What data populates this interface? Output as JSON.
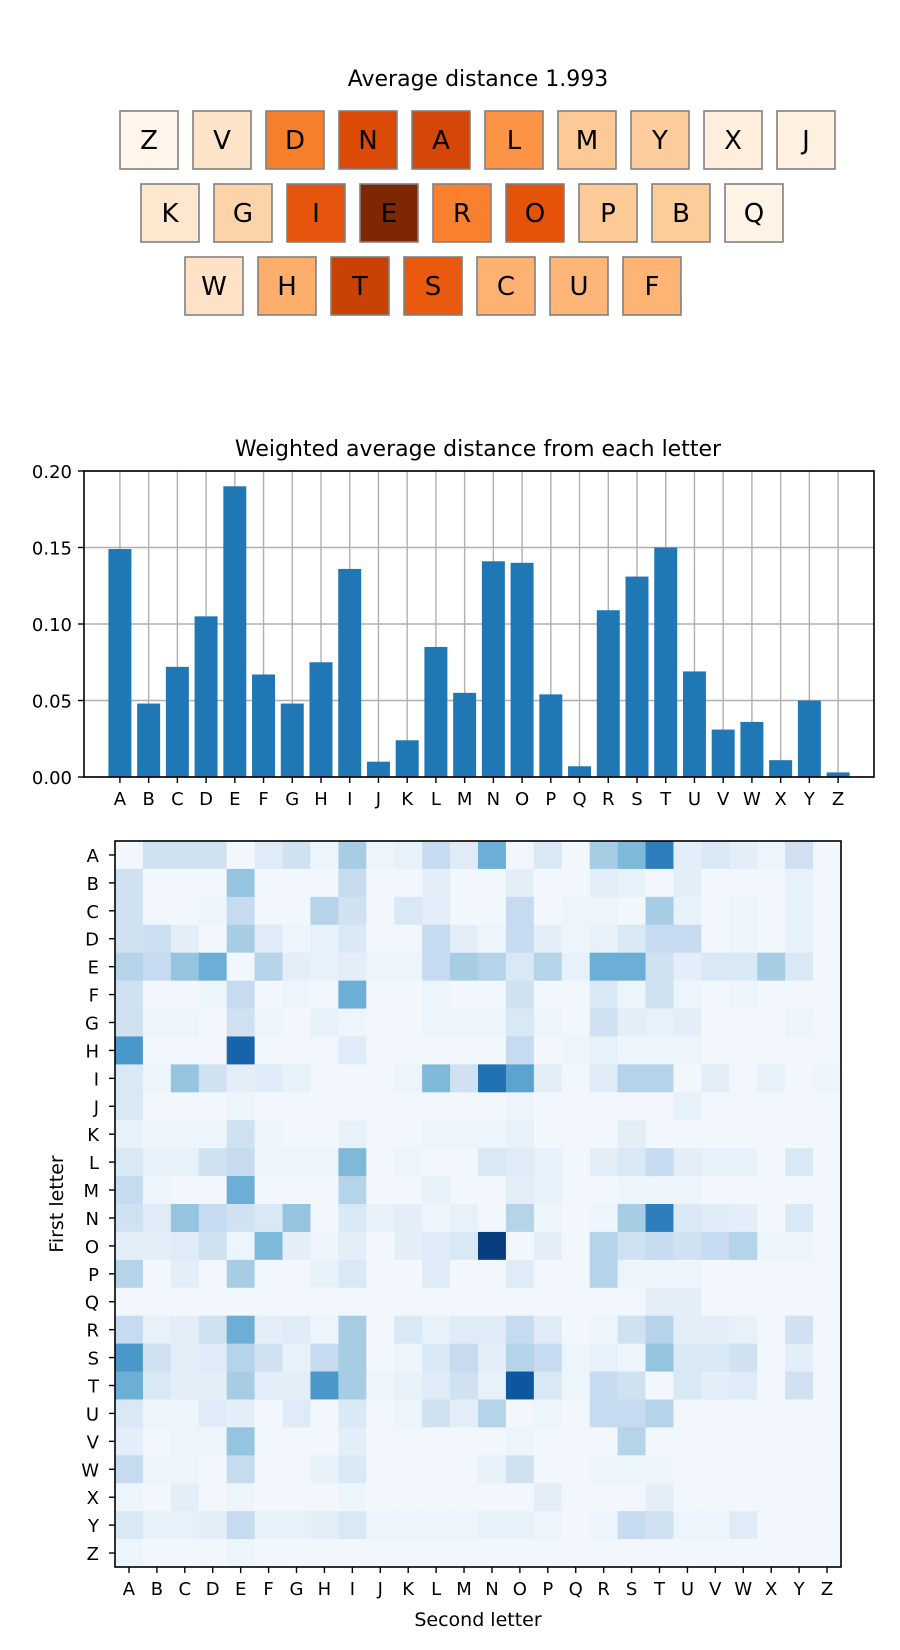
{
  "chart_data": [
    {
      "type": "keyboard-heatmap",
      "title": "Average distance 1.993",
      "rows": [
        [
          "Z",
          "V",
          "D",
          "N",
          "A",
          "L",
          "M",
          "Y",
          "X",
          "J"
        ],
        [
          "K",
          "G",
          "I",
          "E",
          "R",
          "O",
          "P",
          "B",
          "Q"
        ],
        [
          "W",
          "H",
          "T",
          "S",
          "C",
          "U",
          "F"
        ]
      ],
      "key_colors": {
        "Z": "#fff5eb",
        "V": "#fde3c8",
        "D": "#f67f2c",
        "N": "#dc4a07",
        "A": "#d44708",
        "L": "#fd9344",
        "M": "#fdc997",
        "Y": "#fdcc9c",
        "X": "#feeedd",
        "J": "#fff0e1",
        "K": "#fee7cf",
        "G": "#fdd3a9",
        "I": "#e6550d",
        "E": "#7f2704",
        "R": "#f8802e",
        "O": "#e55209",
        "P": "#fdca98",
        "B": "#fdcc9b",
        "Q": "#fff3e6",
        "W": "#fee2c6",
        "H": "#fdae6b",
        "T": "#c94203",
        "S": "#e95a0e",
        "C": "#fdb271",
        "U": "#fdb678",
        "F": "#fdb475"
      }
    },
    {
      "type": "bar",
      "title": "Weighted average distance from each letter",
      "categories": [
        "A",
        "B",
        "C",
        "D",
        "E",
        "F",
        "G",
        "H",
        "I",
        "J",
        "K",
        "L",
        "M",
        "N",
        "O",
        "P",
        "Q",
        "R",
        "S",
        "T",
        "U",
        "V",
        "W",
        "X",
        "Y",
        "Z"
      ],
      "values": [
        0.149,
        0.048,
        0.072,
        0.105,
        0.19,
        0.067,
        0.048,
        0.075,
        0.136,
        0.01,
        0.024,
        0.085,
        0.055,
        0.141,
        0.14,
        0.054,
        0.007,
        0.109,
        0.131,
        0.15,
        0.069,
        0.031,
        0.036,
        0.011,
        0.05,
        0.003
      ],
      "yticks": [
        "0.00",
        "0.05",
        "0.10",
        "0.15",
        "0.20"
      ],
      "ylim": [
        0,
        0.2
      ],
      "color": "#1f77b4",
      "grid": true
    },
    {
      "type": "heatmap",
      "xlabel": "Second letter",
      "ylabel": "First letter",
      "x_categories": [
        "A",
        "B",
        "C",
        "D",
        "E",
        "F",
        "G",
        "H",
        "I",
        "J",
        "K",
        "L",
        "M",
        "N",
        "O",
        "P",
        "Q",
        "R",
        "S",
        "T",
        "U",
        "V",
        "W",
        "X",
        "Y",
        "Z"
      ],
      "y_categories": [
        "A",
        "B",
        "C",
        "D",
        "E",
        "F",
        "G",
        "H",
        "I",
        "J",
        "K",
        "L",
        "M",
        "N",
        "O",
        "P",
        "Q",
        "R",
        "S",
        "T",
        "U",
        "V",
        "W",
        "X",
        "Y",
        "Z"
      ],
      "values": [
        [
          0.03,
          0.2,
          0.2,
          0.2,
          0.03,
          0.12,
          0.2,
          0.05,
          0.35,
          0.05,
          0.08,
          0.25,
          0.12,
          0.5,
          0.03,
          0.15,
          0.03,
          0.35,
          0.45,
          0.7,
          0.1,
          0.15,
          0.1,
          0.05,
          0.2,
          0.03
        ],
        [
          0.2,
          0.03,
          0.03,
          0.03,
          0.4,
          0.03,
          0.03,
          0.03,
          0.25,
          0.03,
          0.03,
          0.1,
          0.03,
          0.03,
          0.1,
          0.03,
          0.03,
          0.1,
          0.08,
          0.03,
          0.1,
          0.03,
          0.03,
          0.03,
          0.08,
          0.03
        ],
        [
          0.2,
          0.03,
          0.03,
          0.05,
          0.25,
          0.03,
          0.03,
          0.3,
          0.2,
          0.03,
          0.15,
          0.1,
          0.03,
          0.03,
          0.25,
          0.03,
          0.05,
          0.05,
          0.03,
          0.35,
          0.08,
          0.03,
          0.05,
          0.03,
          0.08,
          0.03
        ],
        [
          0.2,
          0.22,
          0.1,
          0.03,
          0.35,
          0.12,
          0.05,
          0.08,
          0.15,
          0.03,
          0.03,
          0.25,
          0.1,
          0.05,
          0.25,
          0.1,
          0.05,
          0.08,
          0.15,
          0.25,
          0.25,
          0.03,
          0.05,
          0.03,
          0.08,
          0.03
        ],
        [
          0.3,
          0.25,
          0.4,
          0.5,
          0.03,
          0.3,
          0.1,
          0.08,
          0.1,
          0.05,
          0.05,
          0.25,
          0.35,
          0.3,
          0.15,
          0.3,
          0.08,
          0.5,
          0.5,
          0.2,
          0.1,
          0.15,
          0.15,
          0.35,
          0.15,
          0.03
        ],
        [
          0.2,
          0.03,
          0.03,
          0.05,
          0.25,
          0.03,
          0.05,
          0.03,
          0.5,
          0.03,
          0.03,
          0.05,
          0.03,
          0.03,
          0.2,
          0.03,
          0.03,
          0.15,
          0.05,
          0.2,
          0.05,
          0.03,
          0.05,
          0.03,
          0.03,
          0.03
        ],
        [
          0.2,
          0.05,
          0.05,
          0.03,
          0.2,
          0.05,
          0.03,
          0.08,
          0.05,
          0.03,
          0.03,
          0.05,
          0.05,
          0.05,
          0.15,
          0.05,
          0.03,
          0.2,
          0.1,
          0.08,
          0.1,
          0.03,
          0.03,
          0.03,
          0.05,
          0.03
        ],
        [
          0.6,
          0.03,
          0.03,
          0.03,
          0.8,
          0.03,
          0.03,
          0.03,
          0.12,
          0.03,
          0.03,
          0.03,
          0.03,
          0.03,
          0.25,
          0.03,
          0.05,
          0.08,
          0.05,
          0.05,
          0.05,
          0.03,
          0.03,
          0.03,
          0.03,
          0.03
        ],
        [
          0.15,
          0.05,
          0.4,
          0.2,
          0.1,
          0.12,
          0.08,
          0.03,
          0.03,
          0.03,
          0.05,
          0.45,
          0.2,
          0.75,
          0.55,
          0.1,
          0.03,
          0.12,
          0.3,
          0.3,
          0.03,
          0.1,
          0.03,
          0.08,
          0.03,
          0.05
        ],
        [
          0.15,
          0.03,
          0.03,
          0.03,
          0.05,
          0.03,
          0.03,
          0.03,
          0.03,
          0.03,
          0.03,
          0.03,
          0.03,
          0.03,
          0.05,
          0.03,
          0.03,
          0.03,
          0.03,
          0.03,
          0.08,
          0.03,
          0.03,
          0.03,
          0.03,
          0.03
        ],
        [
          0.08,
          0.05,
          0.05,
          0.05,
          0.2,
          0.05,
          0.03,
          0.03,
          0.08,
          0.03,
          0.03,
          0.05,
          0.05,
          0.05,
          0.08,
          0.03,
          0.03,
          0.03,
          0.1,
          0.03,
          0.03,
          0.03,
          0.03,
          0.03,
          0.03,
          0.03
        ],
        [
          0.15,
          0.08,
          0.08,
          0.2,
          0.25,
          0.05,
          0.05,
          0.05,
          0.45,
          0.03,
          0.05,
          0.03,
          0.03,
          0.15,
          0.12,
          0.08,
          0.03,
          0.1,
          0.15,
          0.25,
          0.1,
          0.08,
          0.08,
          0.03,
          0.15,
          0.03
        ],
        [
          0.25,
          0.05,
          0.03,
          0.03,
          0.5,
          0.03,
          0.03,
          0.03,
          0.3,
          0.03,
          0.03,
          0.08,
          0.03,
          0.03,
          0.1,
          0.08,
          0.03,
          0.03,
          0.05,
          0.05,
          0.05,
          0.03,
          0.03,
          0.03,
          0.03,
          0.03
        ],
        [
          0.2,
          0.12,
          0.4,
          0.25,
          0.2,
          0.15,
          0.4,
          0.03,
          0.15,
          0.08,
          0.1,
          0.05,
          0.08,
          0.03,
          0.3,
          0.05,
          0.03,
          0.05,
          0.35,
          0.7,
          0.15,
          0.12,
          0.1,
          0.03,
          0.15,
          0.03
        ],
        [
          0.1,
          0.1,
          0.12,
          0.2,
          0.05,
          0.45,
          0.1,
          0.05,
          0.1,
          0.03,
          0.1,
          0.12,
          0.15,
          0.95,
          0.03,
          0.1,
          0.03,
          0.3,
          0.2,
          0.25,
          0.2,
          0.25,
          0.3,
          0.05,
          0.05,
          0.03
        ],
        [
          0.3,
          0.03,
          0.1,
          0.03,
          0.35,
          0.03,
          0.03,
          0.08,
          0.15,
          0.03,
          0.03,
          0.12,
          0.03,
          0.03,
          0.12,
          0.03,
          0.03,
          0.3,
          0.05,
          0.05,
          0.05,
          0.03,
          0.03,
          0.03,
          0.03,
          0.03
        ],
        [
          0.03,
          0.03,
          0.03,
          0.03,
          0.03,
          0.03,
          0.03,
          0.03,
          0.03,
          0.03,
          0.03,
          0.03,
          0.03,
          0.03,
          0.03,
          0.03,
          0.03,
          0.03,
          0.03,
          0.1,
          0.1,
          0.03,
          0.03,
          0.03,
          0.03,
          0.03
        ],
        [
          0.25,
          0.08,
          0.1,
          0.2,
          0.5,
          0.1,
          0.12,
          0.05,
          0.35,
          0.03,
          0.15,
          0.08,
          0.12,
          0.12,
          0.25,
          0.12,
          0.03,
          0.05,
          0.2,
          0.3,
          0.1,
          0.1,
          0.08,
          0.03,
          0.2,
          0.03
        ],
        [
          0.6,
          0.2,
          0.1,
          0.12,
          0.3,
          0.2,
          0.08,
          0.25,
          0.35,
          0.03,
          0.05,
          0.15,
          0.25,
          0.1,
          0.3,
          0.25,
          0.05,
          0.08,
          0.05,
          0.4,
          0.15,
          0.15,
          0.2,
          0.03,
          0.1,
          0.03
        ],
        [
          0.5,
          0.15,
          0.1,
          0.1,
          0.35,
          0.1,
          0.1,
          0.6,
          0.35,
          0.05,
          0.08,
          0.12,
          0.2,
          0.08,
          0.85,
          0.15,
          0.05,
          0.25,
          0.2,
          0.03,
          0.15,
          0.1,
          0.12,
          0.03,
          0.2,
          0.03
        ],
        [
          0.15,
          0.05,
          0.05,
          0.12,
          0.1,
          0.03,
          0.12,
          0.03,
          0.15,
          0.03,
          0.05,
          0.2,
          0.1,
          0.3,
          0.03,
          0.05,
          0.03,
          0.25,
          0.25,
          0.3,
          0.03,
          0.03,
          0.03,
          0.03,
          0.03,
          0.03
        ],
        [
          0.1,
          0.03,
          0.05,
          0.05,
          0.4,
          0.03,
          0.03,
          0.03,
          0.1,
          0.03,
          0.03,
          0.03,
          0.03,
          0.03,
          0.05,
          0.03,
          0.03,
          0.03,
          0.3,
          0.03,
          0.03,
          0.03,
          0.03,
          0.03,
          0.03,
          0.03
        ],
        [
          0.25,
          0.05,
          0.05,
          0.03,
          0.25,
          0.03,
          0.03,
          0.08,
          0.15,
          0.03,
          0.03,
          0.03,
          0.03,
          0.08,
          0.2,
          0.03,
          0.03,
          0.05,
          0.05,
          0.05,
          0.03,
          0.03,
          0.03,
          0.03,
          0.03,
          0.03
        ],
        [
          0.05,
          0.03,
          0.1,
          0.03,
          0.05,
          0.03,
          0.03,
          0.03,
          0.05,
          0.03,
          0.03,
          0.03,
          0.03,
          0.03,
          0.03,
          0.1,
          0.03,
          0.03,
          0.03,
          0.1,
          0.03,
          0.03,
          0.03,
          0.03,
          0.03,
          0.03
        ],
        [
          0.15,
          0.08,
          0.08,
          0.1,
          0.25,
          0.08,
          0.08,
          0.1,
          0.15,
          0.05,
          0.05,
          0.05,
          0.05,
          0.08,
          0.08,
          0.05,
          0.03,
          0.05,
          0.25,
          0.2,
          0.05,
          0.05,
          0.12,
          0.03,
          0.03,
          0.03
        ],
        [
          0.05,
          0.03,
          0.03,
          0.03,
          0.05,
          0.03,
          0.03,
          0.03,
          0.03,
          0.03,
          0.03,
          0.03,
          0.03,
          0.03,
          0.03,
          0.03,
          0.03,
          0.03,
          0.03,
          0.03,
          0.03,
          0.03,
          0.03,
          0.03,
          0.03,
          0.03
        ]
      ]
    }
  ]
}
